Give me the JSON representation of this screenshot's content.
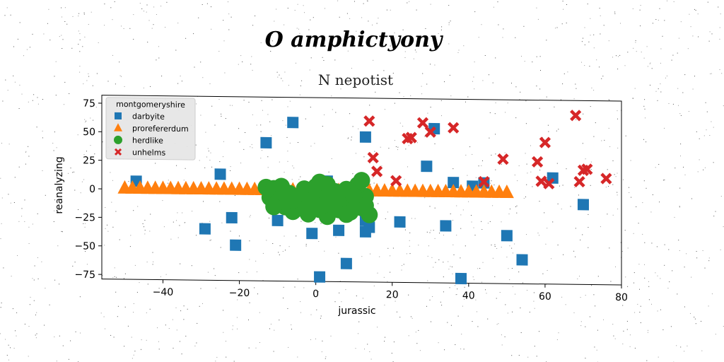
{
  "chart_data": {
    "type": "scatter",
    "title": "O amphictyony",
    "subtitle": "N nepotist",
    "xlabel": "jurassic",
    "ylabel": "reanalyzing",
    "xlim": [
      -56,
      80
    ],
    "ylim": [
      -79,
      82
    ],
    "xticks": [
      -40,
      -20,
      0,
      20,
      40,
      60,
      80
    ],
    "yticks": [
      -75,
      -50,
      -25,
      0,
      25,
      50,
      75
    ],
    "xtick_labels": [
      "−40",
      "−20",
      "0",
      "20",
      "40",
      "60",
      "80"
    ],
    "ytick_labels": [
      "−75",
      "−50",
      "−25",
      "0",
      "25",
      "50",
      "75"
    ],
    "grid": false,
    "legend": {
      "title": "montgomeryshire",
      "position": "top-left"
    },
    "series": [
      {
        "name": "darbyite",
        "marker": "square",
        "color": "#1f77b4",
        "points": [
          [
            -47,
            7
          ],
          [
            -25,
            14
          ],
          [
            -13,
            42
          ],
          [
            -6,
            60
          ],
          [
            -22,
            -24
          ],
          [
            -29,
            -34
          ],
          [
            -21,
            -48
          ],
          [
            -10,
            -26
          ],
          [
            -1,
            -37
          ],
          [
            3,
            9
          ],
          [
            6,
            -34
          ],
          [
            8,
            -63
          ],
          [
            1,
            -75
          ],
          [
            13,
            -25
          ],
          [
            13,
            -35
          ],
          [
            14,
            -31
          ],
          [
            13,
            48
          ],
          [
            22,
            -26
          ],
          [
            29,
            23
          ],
          [
            31,
            56
          ],
          [
            36,
            9
          ],
          [
            38,
            -75
          ],
          [
            34,
            -29
          ],
          [
            41,
            6
          ],
          [
            44,
            9
          ],
          [
            50,
            -37
          ],
          [
            54,
            -58
          ],
          [
            62,
            14
          ],
          [
            70,
            -9
          ]
        ]
      },
      {
        "name": "prorefererdum",
        "marker": "triangle",
        "color": "#ff7f0e",
        "points": [
          [
            -50,
            1
          ],
          [
            -48,
            1
          ],
          [
            -46,
            1
          ],
          [
            -44,
            1
          ],
          [
            -42,
            1
          ],
          [
            -40,
            1
          ],
          [
            -38,
            1
          ],
          [
            -36,
            1
          ],
          [
            -34,
            1
          ],
          [
            -32,
            1
          ],
          [
            -30,
            1
          ],
          [
            -28,
            1
          ],
          [
            -26,
            1
          ],
          [
            -24,
            1
          ],
          [
            -22,
            1
          ],
          [
            -20,
            1
          ],
          [
            -18,
            1
          ],
          [
            -16,
            1
          ],
          [
            -14,
            1
          ],
          [
            -12,
            1
          ],
          [
            -10,
            1
          ],
          [
            -8,
            1
          ],
          [
            -6,
            1
          ],
          [
            -4,
            1
          ],
          [
            -2,
            1
          ],
          [
            0,
            1
          ],
          [
            2,
            1
          ],
          [
            4,
            1
          ],
          [
            6,
            1
          ],
          [
            8,
            1
          ],
          [
            10,
            1
          ],
          [
            12,
            1
          ],
          [
            14,
            1
          ],
          [
            16,
            1
          ],
          [
            18,
            1
          ],
          [
            20,
            1
          ],
          [
            22,
            1
          ],
          [
            24,
            1
          ],
          [
            26,
            1
          ],
          [
            28,
            1
          ],
          [
            30,
            1
          ],
          [
            32,
            1
          ],
          [
            34,
            1
          ],
          [
            36,
            1
          ],
          [
            38,
            1
          ],
          [
            40,
            1
          ],
          [
            42,
            1
          ],
          [
            44,
            1
          ],
          [
            46,
            1
          ],
          [
            48,
            1
          ],
          [
            50,
            1
          ]
        ]
      },
      {
        "name": "herdlike",
        "marker": "circle",
        "color": "#2ca02c",
        "points": [
          [
            -13,
            3
          ],
          [
            -11,
            2
          ],
          [
            -9,
            4
          ],
          [
            -12,
            -6
          ],
          [
            -10,
            -10
          ],
          [
            -8,
            -14
          ],
          [
            -6,
            -18
          ],
          [
            -5,
            -6
          ],
          [
            -4,
            -12
          ],
          [
            -3,
            2
          ],
          [
            -2,
            -20
          ],
          [
            -1,
            -8
          ],
          [
            0,
            4
          ],
          [
            1,
            -16
          ],
          [
            2,
            -4
          ],
          [
            3,
            -22
          ],
          [
            4,
            -10
          ],
          [
            5,
            0
          ],
          [
            6,
            -6
          ],
          [
            7,
            -12
          ],
          [
            8,
            2
          ],
          [
            9,
            -18
          ],
          [
            10,
            -8
          ],
          [
            11,
            -2
          ],
          [
            12,
            -14
          ],
          [
            13,
            -4
          ],
          [
            14,
            -20
          ],
          [
            -7,
            -2
          ],
          [
            -3,
            -16
          ],
          [
            1,
            8
          ],
          [
            3,
            6
          ],
          [
            11,
            6
          ],
          [
            12,
            10
          ],
          [
            13,
            -12
          ],
          [
            -11,
            -14
          ],
          [
            -6,
            -8
          ],
          [
            2,
            -12
          ],
          [
            6,
            -16
          ],
          [
            8,
            -20
          ],
          [
            10,
            -4
          ]
        ]
      },
      {
        "name": "unhelms",
        "marker": "x",
        "color": "#d62728",
        "points": [
          [
            14,
            62
          ],
          [
            15,
            30
          ],
          [
            16,
            18
          ],
          [
            21,
            10
          ],
          [
            24,
            47
          ],
          [
            25,
            48
          ],
          [
            28,
            61
          ],
          [
            30,
            53
          ],
          [
            36,
            57
          ],
          [
            44,
            10
          ],
          [
            49,
            30
          ],
          [
            58,
            28
          ],
          [
            59,
            11
          ],
          [
            60,
            45
          ],
          [
            61,
            9
          ],
          [
            68,
            69
          ],
          [
            69,
            11
          ],
          [
            70,
            21
          ],
          [
            71,
            22
          ],
          [
            76,
            14
          ]
        ]
      }
    ]
  }
}
